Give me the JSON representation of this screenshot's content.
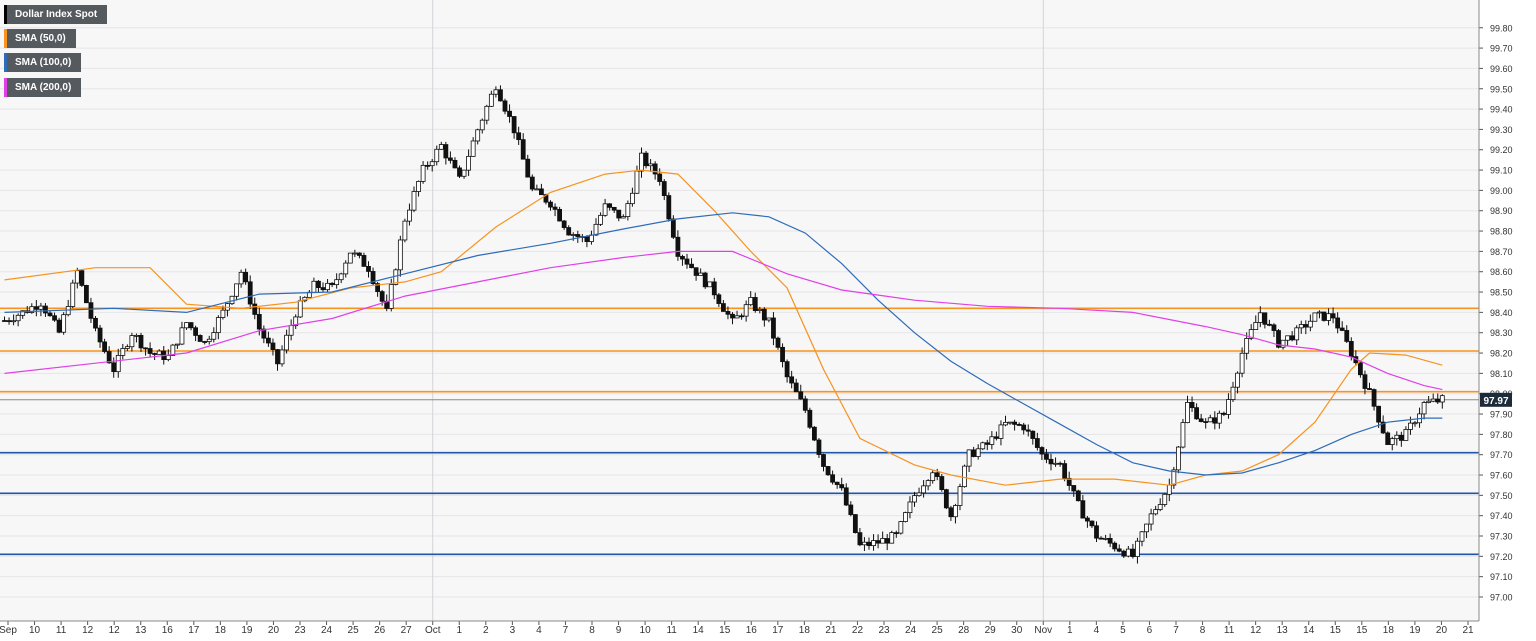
{
  "chart_data": {
    "type": "candlestick",
    "instrument": "Dollar Index Spot",
    "legend": [
      {
        "label": "Dollar Index Spot",
        "color": "#000000"
      },
      {
        "label": "SMA (50,0)",
        "color": "#f7931e"
      },
      {
        "label": "SMA (100,0)",
        "color": "#2e6bb8"
      },
      {
        "label": "SMA (200,0)",
        "color": "#e040e8"
      }
    ],
    "last_price": "97.97",
    "y_range": [
      96.92,
      99.88
    ],
    "y_ticks": [
      "99.80",
      "99.70",
      "99.60",
      "99.50",
      "99.40",
      "99.30",
      "99.20",
      "99.10",
      "99.00",
      "98.90",
      "98.80",
      "98.70",
      "98.60",
      "98.50",
      "98.40",
      "98.30",
      "98.20",
      "98.10",
      "98.00",
      "97.90",
      "97.80",
      "97.70",
      "97.60",
      "97.50",
      "97.40",
      "97.30",
      "97.20",
      "97.10",
      "97.00"
    ],
    "x_labels": [
      "Sep",
      "10",
      "11",
      "12",
      "12",
      "13",
      "16",
      "17",
      "18",
      "19",
      "20",
      "23",
      "24",
      "25",
      "26",
      "27",
      "Oct",
      "1",
      "2",
      "3",
      "4",
      "7",
      "8",
      "9",
      "10",
      "11",
      "14",
      "15",
      "16",
      "17",
      "18",
      "21",
      "22",
      "23",
      "24",
      "25",
      "28",
      "29",
      "30",
      "Nov",
      "1",
      "4",
      "5",
      "6",
      "7",
      "8",
      "11",
      "12",
      "13",
      "14",
      "15",
      "15",
      "18",
      "19",
      "20",
      "21"
    ],
    "resistance_levels": [
      98.42,
      98.21,
      98.01
    ],
    "support_levels": [
      97.71,
      97.51,
      97.21
    ],
    "grid": true,
    "daily_path": [
      [
        0,
        98.36
      ],
      [
        1,
        98.4
      ],
      [
        2,
        98.45
      ],
      [
        3,
        98.3
      ],
      [
        4,
        98.6
      ],
      [
        5,
        98.3
      ],
      [
        6,
        98.12
      ],
      [
        7,
        98.3
      ],
      [
        8,
        98.2
      ],
      [
        9,
        98.18
      ],
      [
        10,
        98.35
      ],
      [
        11,
        98.25
      ],
      [
        12,
        98.4
      ],
      [
        13,
        98.6
      ],
      [
        14,
        98.32
      ],
      [
        15,
        98.15
      ],
      [
        16,
        98.4
      ],
      [
        17,
        98.53
      ],
      [
        18,
        98.52
      ],
      [
        19,
        98.7
      ],
      [
        20,
        98.62
      ],
      [
        21,
        98.4
      ],
      [
        22,
        98.86
      ],
      [
        23,
        99.1
      ],
      [
        24,
        99.22
      ],
      [
        25,
        99.05
      ],
      [
        26,
        99.3
      ],
      [
        27,
        99.52
      ],
      [
        28,
        99.3
      ],
      [
        29,
        99.0
      ],
      [
        30,
        98.94
      ],
      [
        31,
        98.8
      ],
      [
        32,
        98.75
      ],
      [
        33,
        98.92
      ],
      [
        34,
        98.86
      ],
      [
        35,
        99.16
      ],
      [
        36,
        99.06
      ],
      [
        37,
        98.7
      ],
      [
        38,
        98.6
      ],
      [
        39,
        98.5
      ],
      [
        40,
        98.35
      ],
      [
        41,
        98.45
      ],
      [
        42,
        98.35
      ],
      [
        43,
        98.08
      ],
      [
        44,
        97.92
      ],
      [
        45,
        97.65
      ],
      [
        46,
        97.52
      ],
      [
        47,
        97.25
      ],
      [
        48,
        97.27
      ],
      [
        49,
        97.3
      ],
      [
        50,
        97.5
      ],
      [
        51,
        97.63
      ],
      [
        52,
        97.4
      ],
      [
        53,
        97.7
      ],
      [
        54,
        97.75
      ],
      [
        55,
        97.85
      ],
      [
        56,
        97.84
      ],
      [
        57,
        97.7
      ],
      [
        58,
        97.65
      ],
      [
        59,
        97.45
      ],
      [
        60,
        97.3
      ],
      [
        61,
        97.25
      ],
      [
        62,
        97.2
      ],
      [
        63,
        97.4
      ],
      [
        64,
        97.55
      ],
      [
        65,
        97.95
      ],
      [
        66,
        97.85
      ],
      [
        67,
        97.9
      ],
      [
        68,
        98.2
      ],
      [
        69,
        98.4
      ],
      [
        70,
        98.25
      ],
      [
        71,
        98.3
      ],
      [
        72,
        98.38
      ],
      [
        73,
        98.38
      ],
      [
        74,
        98.2
      ],
      [
        75,
        98.0
      ],
      [
        76,
        97.76
      ],
      [
        77,
        97.8
      ],
      [
        78,
        97.95
      ],
      [
        79,
        97.97
      ]
    ],
    "sma50": [
      [
        0,
        98.56
      ],
      [
        5,
        98.62
      ],
      [
        8,
        98.62
      ],
      [
        10,
        98.44
      ],
      [
        13,
        98.42
      ],
      [
        16,
        98.45
      ],
      [
        19,
        98.52
      ],
      [
        22,
        98.55
      ],
      [
        24,
        98.6
      ],
      [
        27,
        98.82
      ],
      [
        30,
        98.99
      ],
      [
        33,
        99.08
      ],
      [
        35,
        99.1
      ],
      [
        37,
        99.08
      ],
      [
        39,
        98.9
      ],
      [
        41,
        98.7
      ],
      [
        43,
        98.52
      ],
      [
        45,
        98.12
      ],
      [
        47,
        97.78
      ],
      [
        50,
        97.65
      ],
      [
        52,
        97.6
      ],
      [
        55,
        97.55
      ],
      [
        58,
        97.58
      ],
      [
        61,
        97.58
      ],
      [
        64,
        97.55
      ],
      [
        66,
        97.6
      ],
      [
        68,
        97.62
      ],
      [
        70,
        97.7
      ],
      [
        72,
        97.86
      ],
      [
        74,
        98.12
      ],
      [
        75,
        98.2
      ],
      [
        77,
        98.19
      ],
      [
        79,
        98.14
      ]
    ],
    "sma100": [
      [
        0,
        98.4
      ],
      [
        6,
        98.42
      ],
      [
        10,
        98.4
      ],
      [
        14,
        98.49
      ],
      [
        18,
        98.5
      ],
      [
        22,
        98.59
      ],
      [
        26,
        98.68
      ],
      [
        30,
        98.74
      ],
      [
        34,
        98.81
      ],
      [
        37,
        98.86
      ],
      [
        40,
        98.89
      ],
      [
        42,
        98.87
      ],
      [
        44,
        98.79
      ],
      [
        46,
        98.64
      ],
      [
        48,
        98.46
      ],
      [
        50,
        98.3
      ],
      [
        52,
        98.16
      ],
      [
        54,
        98.05
      ],
      [
        56,
        97.95
      ],
      [
        58,
        97.85
      ],
      [
        60,
        97.75
      ],
      [
        62,
        97.66
      ],
      [
        64,
        97.62
      ],
      [
        66,
        97.6
      ],
      [
        68,
        97.61
      ],
      [
        70,
        97.66
      ],
      [
        72,
        97.72
      ],
      [
        74,
        97.8
      ],
      [
        76,
        97.86
      ],
      [
        78,
        97.88
      ],
      [
        79,
        97.88
      ]
    ],
    "sma200": [
      [
        0,
        98.1
      ],
      [
        5,
        98.15
      ],
      [
        10,
        98.2
      ],
      [
        14,
        98.31
      ],
      [
        18,
        98.37
      ],
      [
        22,
        98.48
      ],
      [
        26,
        98.55
      ],
      [
        30,
        98.62
      ],
      [
        34,
        98.67
      ],
      [
        37,
        98.7
      ],
      [
        40,
        98.7
      ],
      [
        43,
        98.59
      ],
      [
        46,
        98.51
      ],
      [
        50,
        98.46
      ],
      [
        54,
        98.43
      ],
      [
        58,
        98.42
      ],
      [
        62,
        98.4
      ],
      [
        66,
        98.33
      ],
      [
        68,
        98.29
      ],
      [
        70,
        98.24
      ],
      [
        72,
        98.22
      ],
      [
        74,
        98.18
      ],
      [
        76,
        98.1
      ],
      [
        78,
        98.04
      ],
      [
        79,
        98.02
      ]
    ]
  }
}
